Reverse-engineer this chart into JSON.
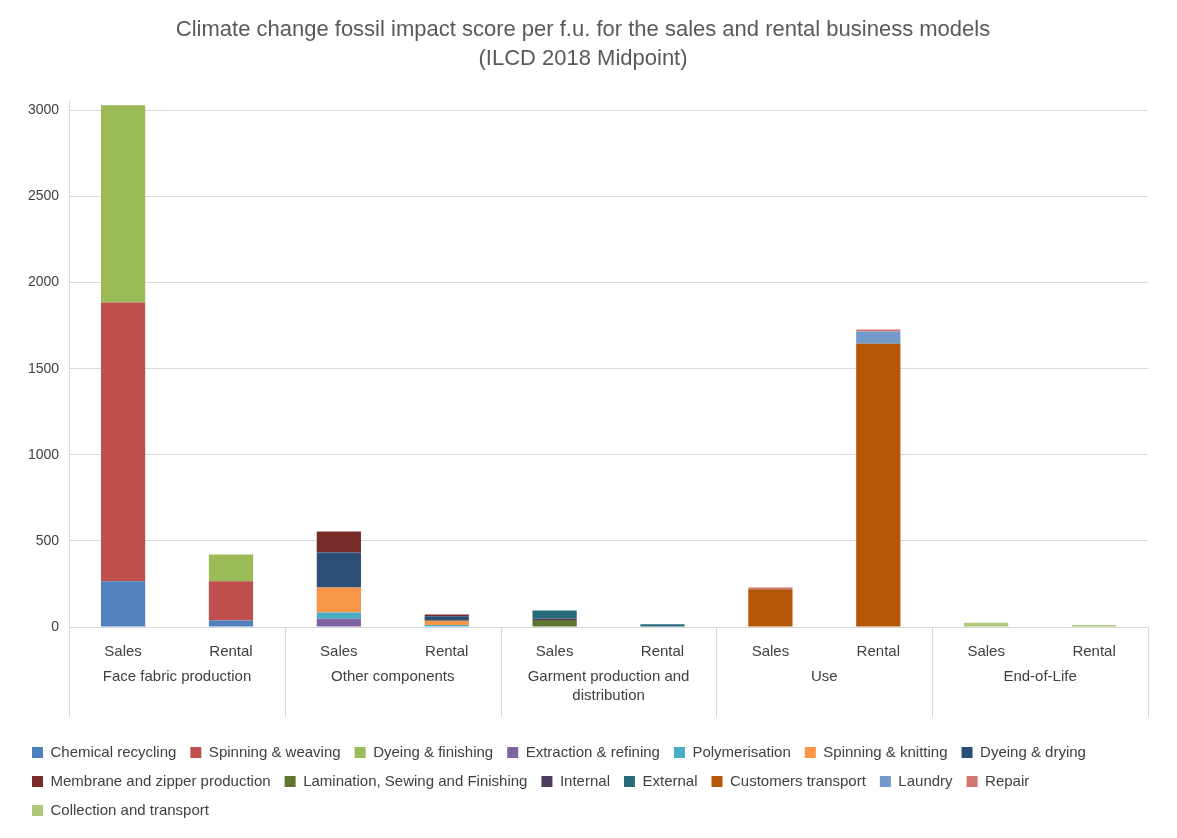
{
  "chart_data": {
    "type": "bar",
    "stacked": true,
    "title": "Climate change fossil impact score per f.u. for the sales and rental business models",
    "subtitle": "(ILCD 2018 Midpoint)",
    "categories": [
      "Sales",
      "Rental",
      "Sales",
      "Rental",
      "Sales",
      "Rental",
      "Sales",
      "Rental",
      "Sales",
      "Rental"
    ],
    "annotations": [
      "Face fabric production",
      "Other components",
      "Garment production and distribution",
      "Use",
      "End-of-Life"
    ],
    "ylim": [
      0,
      3050
    ],
    "yticks": [
      0,
      500,
      1000,
      1500,
      2000,
      2500,
      3000
    ],
    "grid": "y",
    "legend": "bottom",
    "series": [
      {
        "name": "Chemical recycling",
        "color": "#4f81bd",
        "values": [
          265,
          38,
          null,
          null,
          null,
          null,
          null,
          null,
          null,
          null
        ]
      },
      {
        "name": "Spinning & weaving",
        "color": "#c0504d",
        "values": [
          1620,
          227,
          null,
          null,
          null,
          null,
          null,
          null,
          null,
          null
        ]
      },
      {
        "name": "Dyeing & finishing",
        "color": "#9bbb59",
        "values": [
          1145,
          156,
          null,
          null,
          null,
          null,
          null,
          null,
          null,
          null
        ]
      },
      {
        "name": "Extraction & refining",
        "color": "#8064a2",
        "values": [
          null,
          null,
          48,
          null,
          null,
          null,
          null,
          null,
          null,
          null
        ]
      },
      {
        "name": "Polymerisation",
        "color": "#4bacc6",
        "values": [
          null,
          null,
          36,
          12,
          null,
          null,
          null,
          null,
          null,
          null
        ]
      },
      {
        "name": "Spinning & knitting",
        "color": "#f79646",
        "values": [
          null,
          null,
          145,
          24,
          null,
          null,
          null,
          null,
          null,
          null
        ]
      },
      {
        "name": "Dyeing & drying",
        "color": "#2c4d75",
        "values": [
          null,
          null,
          203,
          26,
          null,
          null,
          null,
          null,
          null,
          null
        ]
      },
      {
        "name": "Membrane and zipper production",
        "color": "#772c2a",
        "values": [
          null,
          null,
          122,
          10,
          null,
          null,
          null,
          null,
          null,
          null
        ]
      },
      {
        "name": "Lamination, Sewing and Finishing",
        "color": "#5f7530",
        "values": [
          null,
          null,
          null,
          null,
          40,
          null,
          null,
          null,
          null,
          null
        ]
      },
      {
        "name": "Internal",
        "color": "#4d3b62",
        "values": [
          null,
          null,
          null,
          null,
          10,
          null,
          null,
          null,
          null,
          null
        ]
      },
      {
        "name": "External",
        "color": "#276a7c",
        "values": [
          null,
          null,
          null,
          null,
          46,
          16,
          null,
          null,
          null,
          null
        ]
      },
      {
        "name": "Customers transport",
        "color": "#b65708",
        "values": [
          null,
          null,
          null,
          null,
          null,
          null,
          219,
          1645,
          null,
          null
        ]
      },
      {
        "name": "Laundry",
        "color": "#729aca",
        "values": [
          null,
          null,
          null,
          null,
          null,
          null,
          null,
          71,
          null,
          null
        ]
      },
      {
        "name": "Repair",
        "color": "#d3756f",
        "values": [
          null,
          null,
          null,
          null,
          null,
          null,
          10,
          12,
          null,
          null
        ]
      },
      {
        "name": "Collection and transport",
        "color": "#afc97a",
        "values": [
          null,
          null,
          null,
          null,
          null,
          null,
          null,
          null,
          24,
          12
        ]
      }
    ]
  }
}
